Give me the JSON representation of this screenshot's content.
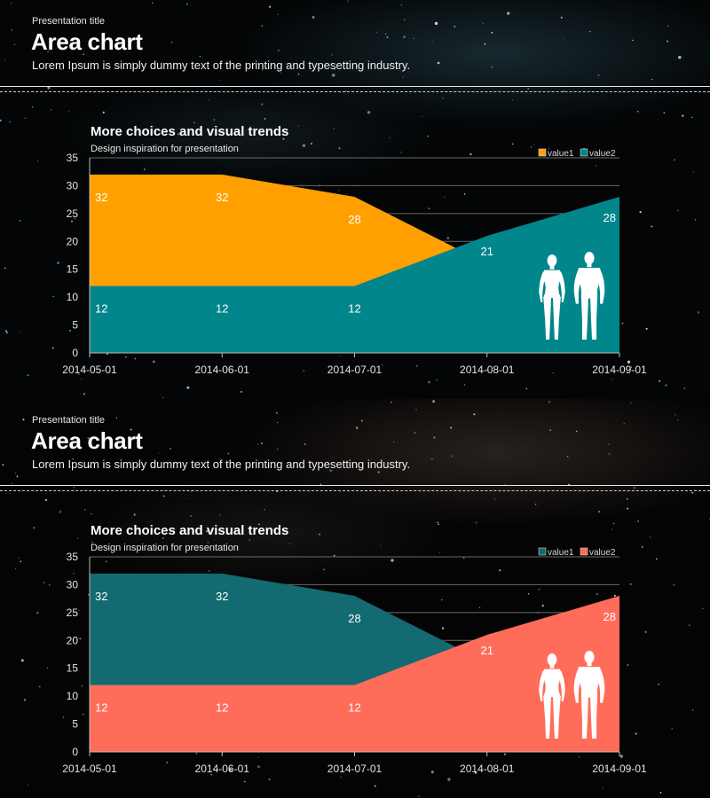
{
  "slides": [
    {
      "presentation_title": "Presentation title",
      "title": "Area chart",
      "subtitle": "Lorem Ipsum is simply dummy text of the printing and typesetting industry.",
      "chart_data": {
        "type": "area",
        "title": "More choices and visual trends",
        "subtitle": "Design inspiration for presentation",
        "x": [
          "2014-05-01",
          "2014-06-01",
          "2014-07-01",
          "2014-08-01",
          "2014-09-01"
        ],
        "series": [
          {
            "name": "value1",
            "values": [
              32,
              32,
              28,
              16,
              11
            ],
            "color": "#FFA000"
          },
          {
            "name": "value2",
            "values": [
              12,
              12,
              12,
              21,
              28
            ],
            "color": "#00868B"
          }
        ],
        "point_labels": [
          {
            "series": "value1",
            "x": "2014-05-01",
            "text": "32"
          },
          {
            "series": "value1",
            "x": "2014-06-01",
            "text": "32"
          },
          {
            "series": "value1",
            "x": "2014-07-01",
            "text": "28"
          },
          {
            "series": "value2",
            "x": "2014-05-01",
            "text": "12"
          },
          {
            "series": "value2",
            "x": "2014-06-01",
            "text": "12"
          },
          {
            "series": "value2",
            "x": "2014-07-01",
            "text": "12"
          },
          {
            "series": "value2",
            "x": "2014-08-01",
            "text": "21"
          },
          {
            "series": "value2",
            "x": "2014-09-01",
            "text": "28"
          }
        ],
        "ylim": [
          0,
          35
        ],
        "yticks": [
          0,
          5,
          10,
          15,
          20,
          25,
          30,
          35
        ],
        "grid": true,
        "legend": "top-right",
        "icon": "human-figures-icon"
      }
    },
    {
      "presentation_title": "Presentation title",
      "title": "Area chart",
      "subtitle": "Lorem Ipsum is simply dummy text of the printing and typesetting industry.",
      "chart_data": {
        "type": "area",
        "title": "More choices and visual trends",
        "subtitle": "Design inspiration for presentation",
        "x": [
          "2014-05-01",
          "2014-06-01",
          "2014-07-01",
          "2014-08-01",
          "2014-09-01"
        ],
        "series": [
          {
            "name": "value1",
            "values": [
              32,
              32,
              28,
              16,
              11
            ],
            "color": "#136A70"
          },
          {
            "name": "value2",
            "values": [
              12,
              12,
              12,
              21,
              28
            ],
            "color": "#FF6D5A"
          }
        ],
        "point_labels": [
          {
            "series": "value1",
            "x": "2014-05-01",
            "text": "32"
          },
          {
            "series": "value1",
            "x": "2014-06-01",
            "text": "32"
          },
          {
            "series": "value1",
            "x": "2014-07-01",
            "text": "28"
          },
          {
            "series": "value2",
            "x": "2014-05-01",
            "text": "12"
          },
          {
            "series": "value2",
            "x": "2014-06-01",
            "text": "12"
          },
          {
            "series": "value2",
            "x": "2014-07-01",
            "text": "12"
          },
          {
            "series": "value2",
            "x": "2014-08-01",
            "text": "21"
          },
          {
            "series": "value2",
            "x": "2014-09-01",
            "text": "28"
          }
        ],
        "ylim": [
          0,
          35
        ],
        "yticks": [
          0,
          5,
          10,
          15,
          20,
          25,
          30,
          35
        ],
        "grid": true,
        "legend": "top-right",
        "icon": "human-figures-icon"
      }
    }
  ]
}
